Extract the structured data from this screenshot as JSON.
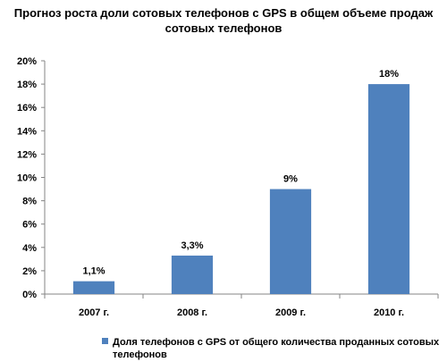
{
  "chart_data": {
    "type": "bar",
    "title_lines": [
      "Прогноз роста доли сотовых телефонов с GPS в общем объеме продаж",
      "сотовых телефонов"
    ],
    "categories": [
      "2007 г.",
      "2008 г.",
      "2009 г.",
      "2010 г."
    ],
    "series": [
      {
        "name": "Доля телефонов с GPS от общего количества проданных сотовых телефонов",
        "legend_lines": [
          "Доля телефонов с GPS от общего количества проданных сотовых",
          "телефонов"
        ],
        "values": [
          1.1,
          3.3,
          9,
          18
        ],
        "labels": [
          "1,1%",
          "3,3%",
          "9%",
          "18%"
        ],
        "color": "#4F81BD"
      }
    ],
    "y_ticks": [
      "0%",
      "2%",
      "4%",
      "6%",
      "8%",
      "10%",
      "12%",
      "14%",
      "16%",
      "18%",
      "20%"
    ],
    "ylim": [
      0,
      20
    ],
    "ystep": 2,
    "grid": false,
    "legend_position": "bottom"
  }
}
